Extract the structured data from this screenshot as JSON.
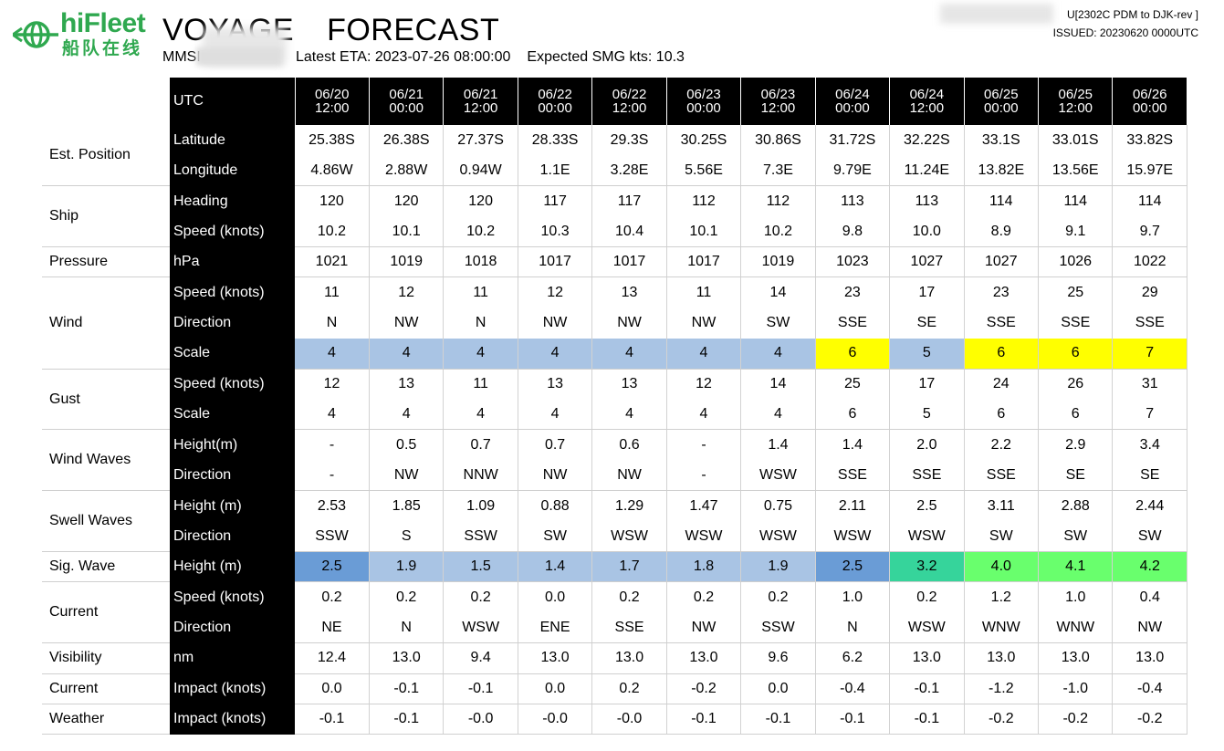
{
  "header": {
    "logo_text": "hiFleet",
    "logo_cn": "船队在线",
    "title_part1": "VOYAGE",
    "title_part2": "FORECAST",
    "mmsi_label": "MMSI",
    "latest_eta": "Latest ETA: 2023-07-26 08:00:00",
    "expected_smg": "Expected SMG kts: 10.3",
    "route": "U[2302C PDM to DJK-rev ]",
    "issued": "ISSUED: 20230620 0000UTC"
  },
  "colors": {
    "header_bg": "#000000",
    "header_text": "#ffffff",
    "logo_green": "#2fa84f",
    "scale_blue": "#a9c4e4",
    "scale_yellow": "#ffff00",
    "wave_blue": "#6a9cd6",
    "wave_teal": "#36d49b",
    "wave_green": "#69ff6d"
  },
  "table": {
    "utc_label": "UTC",
    "columns": [
      {
        "date": "06/20",
        "time": "12:00"
      },
      {
        "date": "06/21",
        "time": "00:00"
      },
      {
        "date": "06/21",
        "time": "12:00"
      },
      {
        "date": "06/22",
        "time": "00:00"
      },
      {
        "date": "06/22",
        "time": "12:00"
      },
      {
        "date": "06/23",
        "time": "00:00"
      },
      {
        "date": "06/23",
        "time": "12:00"
      },
      {
        "date": "06/24",
        "time": "00:00"
      },
      {
        "date": "06/24",
        "time": "12:00"
      },
      {
        "date": "06/25",
        "time": "00:00"
      },
      {
        "date": "06/25",
        "time": "12:00"
      },
      {
        "date": "06/26",
        "time": "00:00"
      }
    ],
    "groups": [
      {
        "label": "Est. Position",
        "rows": [
          {
            "sub": "Latitude",
            "values": [
              "25.38S",
              "26.38S",
              "27.37S",
              "28.33S",
              "29.3S",
              "30.25S",
              "30.86S",
              "31.72S",
              "32.22S",
              "33.1S",
              "33.01S",
              "33.82S"
            ]
          },
          {
            "sub": "Longitude",
            "values": [
              "4.86W",
              "2.88W",
              "0.94W",
              "1.1E",
              "3.28E",
              "5.56E",
              "7.3E",
              "9.79E",
              "11.24E",
              "13.82E",
              "13.56E",
              "15.97E"
            ]
          }
        ]
      },
      {
        "label": "Ship",
        "rows": [
          {
            "sub": "Heading",
            "values": [
              "120",
              "120",
              "120",
              "117",
              "117",
              "112",
              "112",
              "113",
              "113",
              "114",
              "114",
              "114"
            ]
          },
          {
            "sub": "Speed (knots)",
            "values": [
              "10.2",
              "10.1",
              "10.2",
              "10.3",
              "10.4",
              "10.1",
              "10.2",
              "9.8",
              "10.0",
              "8.9",
              "9.1",
              "9.7"
            ]
          }
        ]
      },
      {
        "label": "Pressure",
        "rows": [
          {
            "sub": "hPa",
            "values": [
              "1021",
              "1019",
              "1018",
              "1017",
              "1017",
              "1017",
              "1019",
              "1023",
              "1027",
              "1027",
              "1026",
              "1022"
            ]
          }
        ]
      },
      {
        "label": "Wind",
        "rows": [
          {
            "sub": "Speed (knots)",
            "values": [
              "11",
              "12",
              "11",
              "12",
              "13",
              "11",
              "14",
              "23",
              "17",
              "23",
              "25",
              "29"
            ]
          },
          {
            "sub": "Direction",
            "values": [
              "N",
              "NW",
              "N",
              "NW",
              "NW",
              "NW",
              "SW",
              "SSE",
              "SE",
              "SSE",
              "SSE",
              "SSE"
            ]
          },
          {
            "sub": "Scale",
            "values": [
              "4",
              "4",
              "4",
              "4",
              "4",
              "4",
              "4",
              "6",
              "5",
              "6",
              "6",
              "7"
            ],
            "colors": [
              "blue",
              "blue",
              "blue",
              "blue",
              "blue",
              "blue",
              "blue",
              "yel",
              "blue",
              "yel",
              "yel",
              "yel"
            ]
          }
        ]
      },
      {
        "label": "Gust",
        "rows": [
          {
            "sub": "Speed (knots)",
            "values": [
              "12",
              "13",
              "11",
              "13",
              "13",
              "12",
              "14",
              "25",
              "17",
              "24",
              "26",
              "31"
            ]
          },
          {
            "sub": "Scale",
            "values": [
              "4",
              "4",
              "4",
              "4",
              "4",
              "4",
              "4",
              "6",
              "5",
              "6",
              "6",
              "7"
            ]
          }
        ]
      },
      {
        "label": "Wind Waves",
        "rows": [
          {
            "sub": "Height(m)",
            "values": [
              "-",
              "0.5",
              "0.7",
              "0.7",
              "0.6",
              "-",
              "1.4",
              "1.4",
              "2.0",
              "2.2",
              "2.9",
              "3.4"
            ]
          },
          {
            "sub": "Direction",
            "values": [
              "-",
              "NW",
              "NNW",
              "NW",
              "NW",
              "-",
              "WSW",
              "SSE",
              "SSE",
              "SSE",
              "SE",
              "SE"
            ]
          }
        ]
      },
      {
        "label": "Swell Waves",
        "rows": [
          {
            "sub": "Height (m)",
            "values": [
              "2.53",
              "1.85",
              "1.09",
              "0.88",
              "1.29",
              "1.47",
              "0.75",
              "2.11",
              "2.5",
              "3.11",
              "2.88",
              "2.44"
            ]
          },
          {
            "sub": "Direction",
            "values": [
              "SSW",
              "S",
              "SSW",
              "SW",
              "WSW",
              "WSW",
              "WSW",
              "WSW",
              "WSW",
              "SW",
              "SW",
              "SW"
            ]
          }
        ]
      },
      {
        "label": "Sig. Wave",
        "rows": [
          {
            "sub": "Height  (m)",
            "values": [
              "2.5",
              "1.9",
              "1.5",
              "1.4",
              "1.7",
              "1.8",
              "1.9",
              "2.5",
              "3.2",
              "4.0",
              "4.1",
              "4.2"
            ],
            "colors": [
              "dblue",
              "blue",
              "blue",
              "blue",
              "blue",
              "blue",
              "blue",
              "dblue",
              "teal",
              "green",
              "green",
              "green"
            ]
          }
        ]
      },
      {
        "label": "Current",
        "rows": [
          {
            "sub": "Speed (knots)",
            "values": [
              "0.2",
              "0.2",
              "0.2",
              "0.0",
              "0.2",
              "0.2",
              "0.2",
              "1.0",
              "0.2",
              "1.2",
              "1.0",
              "0.4"
            ]
          },
          {
            "sub": "Direction",
            "values": [
              "NE",
              "N",
              "WSW",
              "ENE",
              "SSE",
              "NW",
              "SSW",
              "N",
              "WSW",
              "WNW",
              "WNW",
              "NW"
            ]
          }
        ]
      },
      {
        "label": "Visibility",
        "rows": [
          {
            "sub": "nm",
            "values": [
              "12.4",
              "13.0",
              "9.4",
              "13.0",
              "13.0",
              "13.0",
              "9.6",
              "6.2",
              "13.0",
              "13.0",
              "13.0",
              "13.0"
            ]
          }
        ]
      },
      {
        "label": "Current",
        "rows": [
          {
            "sub": "Impact (knots)",
            "values": [
              "0.0",
              "-0.1",
              "-0.1",
              "0.0",
              "0.2",
              "-0.2",
              "0.0",
              "-0.4",
              "-0.1",
              "-1.2",
              "-1.0",
              "-0.4"
            ]
          }
        ]
      },
      {
        "label": "Weather",
        "rows": [
          {
            "sub": "Impact (knots)",
            "values": [
              "-0.1",
              "-0.1",
              "-0.0",
              "-0.0",
              "-0.0",
              "-0.1",
              "-0.1",
              "-0.1",
              "-0.1",
              "-0.2",
              "-0.2",
              "-0.2"
            ]
          }
        ]
      }
    ]
  }
}
